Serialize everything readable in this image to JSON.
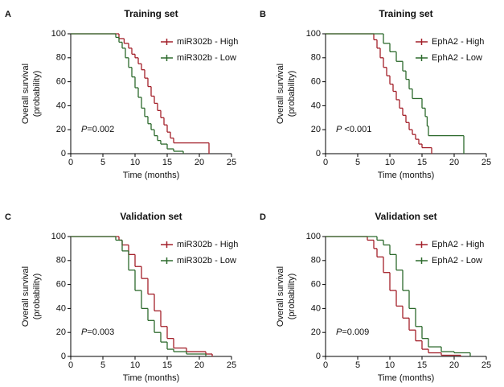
{
  "chart_data": [
    {
      "type": "step",
      "panel": "A",
      "title": "Training set",
      "xlabel": "Time (months)",
      "ylabel": [
        "Overall survival",
        "(probability)"
      ],
      "p_label": "P",
      "p_value": "=0.002",
      "legend": "upper right",
      "xlim": [
        0,
        25
      ],
      "xticks": [
        0,
        5,
        10,
        15,
        20,
        25
      ],
      "ylim": [
        0,
        100
      ],
      "yticks": [
        0,
        20,
        40,
        60,
        80,
        100
      ],
      "series": [
        {
          "name": "miR302b - High",
          "color": "#a3202a",
          "x": [
            0,
            7.5,
            8.3,
            9,
            9.5,
            10,
            10.5,
            11,
            11.5,
            12,
            12.5,
            13,
            13.5,
            14,
            14.5,
            15,
            15.5,
            16,
            21.5
          ],
          "values": [
            100,
            96,
            92,
            88,
            83,
            80,
            75,
            70,
            63,
            56,
            48,
            42,
            36,
            30,
            24,
            18,
            13,
            9,
            0
          ]
        },
        {
          "name": "miR302b - Low",
          "color": "#2d6a2d",
          "x": [
            0,
            7,
            7.5,
            8,
            8.5,
            9,
            9.5,
            10,
            10.5,
            11,
            11.5,
            12,
            12.5,
            13,
            13.5,
            14,
            15,
            16,
            17.5
          ],
          "values": [
            100,
            97,
            93,
            88,
            80,
            72,
            64,
            55,
            47,
            38,
            31,
            25,
            20,
            15,
            11,
            8,
            4,
            2,
            0
          ]
        }
      ]
    },
    {
      "type": "step",
      "panel": "B",
      "title": "Training set",
      "xlabel": "Time (months)",
      "ylabel": [
        "Overall survival",
        "(probability)"
      ],
      "p_label": "P",
      "p_value": " <0.001",
      "legend": "upper right",
      "xlim": [
        0,
        25
      ],
      "xticks": [
        0,
        5,
        10,
        15,
        20,
        25
      ],
      "ylim": [
        0,
        100
      ],
      "yticks": [
        0,
        20,
        40,
        60,
        80,
        100
      ],
      "series": [
        {
          "name": "EphA2 - High",
          "color": "#a3202a",
          "x": [
            0,
            7.5,
            8,
            8.5,
            9,
            9.5,
            10,
            10.5,
            11,
            11.5,
            12,
            12.5,
            13,
            13.5,
            14,
            14.5,
            15,
            16.5
          ],
          "values": [
            100,
            95,
            88,
            80,
            72,
            65,
            58,
            52,
            45,
            38,
            32,
            26,
            20,
            16,
            12,
            8,
            5,
            0
          ]
        },
        {
          "name": "EphA2 - Low",
          "color": "#2d6a2d",
          "x": [
            0,
            9,
            10,
            11,
            12,
            12.5,
            13,
            13.5,
            15,
            15.5,
            15.8,
            16,
            21.5
          ],
          "values": [
            100,
            92,
            85,
            77,
            69,
            62,
            54,
            46,
            38,
            31,
            23,
            15,
            0
          ]
        }
      ]
    },
    {
      "type": "step",
      "panel": "C",
      "title": "Validation set",
      "xlabel": "Time (months)",
      "ylabel": [
        "Overall survival",
        "(probability)"
      ],
      "p_label": "P",
      "p_value": "=0.003",
      "legend": "upper right",
      "xlim": [
        0,
        25
      ],
      "xticks": [
        0,
        5,
        10,
        15,
        20,
        25
      ],
      "ylim": [
        0,
        100
      ],
      "yticks": [
        0,
        20,
        40,
        60,
        80,
        100
      ],
      "series": [
        {
          "name": "miR302b - High",
          "color": "#a3202a",
          "x": [
            0,
            7.5,
            8,
            9,
            10,
            11,
            12,
            13,
            14,
            15,
            16,
            18,
            21,
            22
          ],
          "values": [
            100,
            97,
            93,
            85,
            75,
            65,
            52,
            38,
            25,
            15,
            7,
            4,
            2,
            0
          ]
        },
        {
          "name": "miR302b - Low",
          "color": "#2d6a2d",
          "x": [
            0,
            7,
            8,
            9,
            10,
            11,
            12,
            13,
            14,
            15,
            16,
            18,
            21
          ],
          "values": [
            100,
            97,
            88,
            72,
            55,
            40,
            30,
            20,
            12,
            6,
            4,
            2,
            0
          ]
        }
      ]
    },
    {
      "type": "step",
      "panel": "D",
      "title": "Validation set",
      "xlabel": "Time (months)",
      "ylabel": [
        "Overall survival",
        "(probability)"
      ],
      "p_label": "P",
      "p_value": "=0.009",
      "legend": "upper right",
      "xlim": [
        0,
        25
      ],
      "xticks": [
        0,
        5,
        10,
        15,
        20,
        25
      ],
      "ylim": [
        0,
        100
      ],
      "yticks": [
        0,
        20,
        40,
        60,
        80,
        100
      ],
      "series": [
        {
          "name": "EphA2 - High",
          "color": "#a3202a",
          "x": [
            0,
            6.5,
            7.5,
            8,
            9,
            10,
            11,
            12,
            13,
            14,
            15,
            16,
            18,
            21
          ],
          "values": [
            100,
            97,
            90,
            83,
            70,
            55,
            42,
            32,
            22,
            13,
            6,
            3,
            1,
            0
          ]
        },
        {
          "name": "EphA2 - Low",
          "color": "#2d6a2d",
          "x": [
            0,
            8,
            9,
            10,
            11,
            12,
            13,
            14,
            15,
            16,
            18,
            20,
            22.5
          ],
          "values": [
            100,
            97,
            93,
            85,
            72,
            55,
            40,
            25,
            15,
            8,
            4,
            3,
            0
          ]
        }
      ]
    }
  ]
}
